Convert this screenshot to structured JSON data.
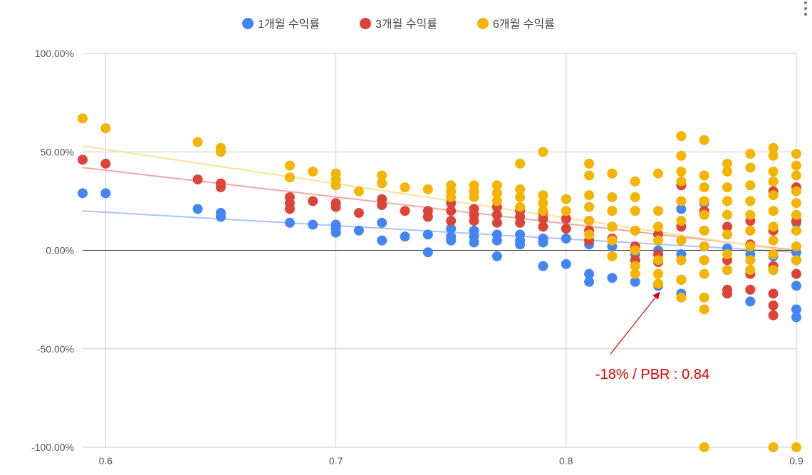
{
  "chart_data": {
    "type": "scatter",
    "title": "",
    "xlabel": "",
    "ylabel": "",
    "xlim": [
      0.59,
      0.9
    ],
    "ylim": [
      -1.0,
      1.0
    ],
    "x_ticks": [
      0.6,
      0.7,
      0.8,
      0.9
    ],
    "x_tick_labels": [
      "0.6",
      "0.7",
      "0.8",
      "0.9"
    ],
    "y_ticks": [
      1.0,
      0.5,
      0.0,
      -0.5,
      -1.0
    ],
    "y_tick_labels": [
      "100.00%",
      "50.00%",
      "0.00%",
      "-50.00%",
      "-100.00%"
    ],
    "grid": true,
    "legend_position": "top-center",
    "series": [
      {
        "name": "1개월 수익률",
        "color": "#4285f4",
        "trendline_color": "#a9c4f5",
        "trendline": [
          [
            0.59,
            0.2
          ],
          [
            0.9,
            -0.01
          ]
        ],
        "points": [
          [
            0.59,
            0.29
          ],
          [
            0.6,
            0.29
          ],
          [
            0.64,
            0.21
          ],
          [
            0.65,
            0.19
          ],
          [
            0.65,
            0.17
          ],
          [
            0.68,
            0.14
          ],
          [
            0.69,
            0.13
          ],
          [
            0.7,
            0.13
          ],
          [
            0.7,
            0.11
          ],
          [
            0.7,
            0.09
          ],
          [
            0.71,
            0.1
          ],
          [
            0.72,
            0.14
          ],
          [
            0.72,
            0.05
          ],
          [
            0.73,
            0.07
          ],
          [
            0.74,
            0.08
          ],
          [
            0.74,
            -0.01
          ],
          [
            0.75,
            0.11
          ],
          [
            0.75,
            0.07
          ],
          [
            0.75,
            0.05
          ],
          [
            0.76,
            0.1
          ],
          [
            0.76,
            0.07
          ],
          [
            0.76,
            0.04
          ],
          [
            0.77,
            0.08
          ],
          [
            0.77,
            0.05
          ],
          [
            0.77,
            -0.03
          ],
          [
            0.78,
            0.08
          ],
          [
            0.78,
            0.05
          ],
          [
            0.78,
            0.03
          ],
          [
            0.79,
            0.06
          ],
          [
            0.79,
            0.04
          ],
          [
            0.79,
            -0.08
          ],
          [
            0.8,
            0.06
          ],
          [
            0.8,
            -0.07
          ],
          [
            0.81,
            0.03
          ],
          [
            0.81,
            -0.12
          ],
          [
            0.81,
            -0.16
          ],
          [
            0.82,
            0.02
          ],
          [
            0.82,
            -0.14
          ],
          [
            0.83,
            -0.02
          ],
          [
            0.83,
            -0.16
          ],
          [
            0.84,
            -0.18
          ],
          [
            0.84,
            0.0
          ],
          [
            0.85,
            0.21
          ],
          [
            0.85,
            -0.02
          ],
          [
            0.85,
            -0.22
          ],
          [
            0.86,
            0.24
          ],
          [
            0.86,
            0.02
          ],
          [
            0.87,
            0.01
          ],
          [
            0.88,
            -0.02
          ],
          [
            0.88,
            -0.26
          ],
          [
            0.89,
            -0.03
          ],
          [
            0.89,
            -0.1
          ],
          [
            0.9,
            0.14
          ],
          [
            0.9,
            -0.01
          ],
          [
            0.9,
            -0.18
          ],
          [
            0.9,
            -0.3
          ],
          [
            0.9,
            -0.34
          ]
        ]
      },
      {
        "name": "3개월 수익률",
        "color": "#db4437",
        "trendline_color": "#f0a8a1",
        "trendline": [
          [
            0.59,
            0.42
          ],
          [
            0.9,
            0.0
          ]
        ],
        "points": [
          [
            0.59,
            0.46
          ],
          [
            0.6,
            0.44
          ],
          [
            0.64,
            0.36
          ],
          [
            0.65,
            0.34
          ],
          [
            0.65,
            0.32
          ],
          [
            0.68,
            0.27
          ],
          [
            0.68,
            0.24
          ],
          [
            0.68,
            0.21
          ],
          [
            0.69,
            0.25
          ],
          [
            0.7,
            0.24
          ],
          [
            0.7,
            0.22
          ],
          [
            0.71,
            0.19
          ],
          [
            0.72,
            0.26
          ],
          [
            0.72,
            0.23
          ],
          [
            0.73,
            0.2
          ],
          [
            0.74,
            0.2
          ],
          [
            0.74,
            0.17
          ],
          [
            0.75,
            0.24
          ],
          [
            0.75,
            0.2
          ],
          [
            0.75,
            0.15
          ],
          [
            0.76,
            0.21
          ],
          [
            0.76,
            0.18
          ],
          [
            0.76,
            0.15
          ],
          [
            0.77,
            0.22
          ],
          [
            0.77,
            0.18
          ],
          [
            0.77,
            0.14
          ],
          [
            0.78,
            0.2
          ],
          [
            0.78,
            0.17
          ],
          [
            0.78,
            0.14
          ],
          [
            0.79,
            0.19
          ],
          [
            0.79,
            0.16
          ],
          [
            0.79,
            0.12
          ],
          [
            0.8,
            0.16
          ],
          [
            0.8,
            0.11
          ],
          [
            0.81,
            0.15
          ],
          [
            0.81,
            0.1
          ],
          [
            0.81,
            0.05
          ],
          [
            0.82,
            0.12
          ],
          [
            0.82,
            0.06
          ],
          [
            0.83,
            0.1
          ],
          [
            0.83,
            0.02
          ],
          [
            0.83,
            -0.05
          ],
          [
            0.84,
            0.08
          ],
          [
            0.84,
            -0.02
          ],
          [
            0.84,
            -0.06
          ],
          [
            0.85,
            0.33
          ],
          [
            0.85,
            0.12
          ],
          [
            0.85,
            -0.05
          ],
          [
            0.85,
            -0.15
          ],
          [
            0.86,
            0.2
          ],
          [
            0.86,
            0.1
          ],
          [
            0.86,
            -0.05
          ],
          [
            0.87,
            0.12
          ],
          [
            0.87,
            -0.05
          ],
          [
            0.87,
            -0.2
          ],
          [
            0.87,
            -0.22
          ],
          [
            0.88,
            0.15
          ],
          [
            0.88,
            0.03
          ],
          [
            0.88,
            -0.12
          ],
          [
            0.88,
            -0.2
          ],
          [
            0.89,
            0.3
          ],
          [
            0.89,
            0.1
          ],
          [
            0.89,
            -0.08
          ],
          [
            0.89,
            -0.22
          ],
          [
            0.89,
            -0.28
          ],
          [
            0.89,
            -0.33
          ],
          [
            0.9,
            0.32
          ],
          [
            0.9,
            0.15
          ],
          [
            0.9,
            -0.05
          ],
          [
            0.9,
            -0.12
          ]
        ]
      },
      {
        "name": "6개월 수익률",
        "color": "#f4b400",
        "trendline_color": "#fbe199",
        "trendline": [
          [
            0.59,
            0.53
          ],
          [
            0.9,
            -0.01
          ]
        ],
        "points": [
          [
            0.59,
            0.67
          ],
          [
            0.6,
            0.62
          ],
          [
            0.64,
            0.55
          ],
          [
            0.65,
            0.52
          ],
          [
            0.65,
            0.5
          ],
          [
            0.68,
            0.43
          ],
          [
            0.68,
            0.37
          ],
          [
            0.69,
            0.4
          ],
          [
            0.7,
            0.39
          ],
          [
            0.7,
            0.36
          ],
          [
            0.7,
            0.33
          ],
          [
            0.71,
            0.3
          ],
          [
            0.72,
            0.38
          ],
          [
            0.72,
            0.34
          ],
          [
            0.73,
            0.32
          ],
          [
            0.74,
            0.31
          ],
          [
            0.75,
            0.33
          ],
          [
            0.75,
            0.3
          ],
          [
            0.75,
            0.27
          ],
          [
            0.76,
            0.33
          ],
          [
            0.76,
            0.3
          ],
          [
            0.76,
            0.27
          ],
          [
            0.77,
            0.33
          ],
          [
            0.77,
            0.29
          ],
          [
            0.77,
            0.25
          ],
          [
            0.78,
            0.44
          ],
          [
            0.78,
            0.31
          ],
          [
            0.78,
            0.27
          ],
          [
            0.78,
            0.22
          ],
          [
            0.79,
            0.5
          ],
          [
            0.79,
            0.28
          ],
          [
            0.79,
            0.24
          ],
          [
            0.79,
            0.2
          ],
          [
            0.8,
            0.26
          ],
          [
            0.8,
            0.2
          ],
          [
            0.81,
            0.44
          ],
          [
            0.81,
            0.38
          ],
          [
            0.81,
            0.28
          ],
          [
            0.81,
            0.22
          ],
          [
            0.81,
            0.15
          ],
          [
            0.81,
            0.08
          ],
          [
            0.82,
            0.39
          ],
          [
            0.82,
            0.27
          ],
          [
            0.82,
            0.2
          ],
          [
            0.82,
            0.12
          ],
          [
            0.82,
            0.05
          ],
          [
            0.82,
            -0.03
          ],
          [
            0.83,
            0.35
          ],
          [
            0.83,
            0.27
          ],
          [
            0.83,
            0.2
          ],
          [
            0.83,
            0.1
          ],
          [
            0.83,
            0.0
          ],
          [
            0.83,
            -0.08
          ],
          [
            0.83,
            -0.12
          ],
          [
            0.84,
            0.39
          ],
          [
            0.84,
            0.2
          ],
          [
            0.84,
            0.12
          ],
          [
            0.84,
            0.05
          ],
          [
            0.84,
            -0.05
          ],
          [
            0.84,
            -0.12
          ],
          [
            0.84,
            -0.17
          ],
          [
            0.85,
            0.58
          ],
          [
            0.85,
            0.48
          ],
          [
            0.85,
            0.4
          ],
          [
            0.85,
            0.35
          ],
          [
            0.85,
            0.25
          ],
          [
            0.85,
            0.15
          ],
          [
            0.85,
            0.05
          ],
          [
            0.85,
            -0.05
          ],
          [
            0.85,
            -0.15
          ],
          [
            0.85,
            -0.24
          ],
          [
            0.86,
            0.56
          ],
          [
            0.86,
            0.38
          ],
          [
            0.86,
            0.32
          ],
          [
            0.86,
            0.25
          ],
          [
            0.86,
            0.18
          ],
          [
            0.86,
            0.1
          ],
          [
            0.86,
            0.02
          ],
          [
            0.86,
            -0.05
          ],
          [
            0.86,
            -0.12
          ],
          [
            0.86,
            -0.24
          ],
          [
            0.86,
            -0.3
          ],
          [
            0.86,
            -1.0
          ],
          [
            0.87,
            0.44
          ],
          [
            0.87,
            0.4
          ],
          [
            0.87,
            0.32
          ],
          [
            0.87,
            0.25
          ],
          [
            0.87,
            0.18
          ],
          [
            0.87,
            0.08
          ],
          [
            0.87,
            -0.02
          ],
          [
            0.87,
            -0.1
          ],
          [
            0.88,
            0.49
          ],
          [
            0.88,
            0.42
          ],
          [
            0.88,
            0.33
          ],
          [
            0.88,
            0.25
          ],
          [
            0.88,
            0.18
          ],
          [
            0.88,
            0.1
          ],
          [
            0.88,
            0.02
          ],
          [
            0.88,
            -0.05
          ],
          [
            0.88,
            -0.1
          ],
          [
            0.89,
            0.52
          ],
          [
            0.89,
            0.48
          ],
          [
            0.89,
            0.4
          ],
          [
            0.89,
            0.35
          ],
          [
            0.89,
            0.28
          ],
          [
            0.89,
            0.2
          ],
          [
            0.89,
            0.12
          ],
          [
            0.89,
            0.05
          ],
          [
            0.89,
            -0.02
          ],
          [
            0.89,
            -0.1
          ],
          [
            0.89,
            -1.0
          ],
          [
            0.9,
            0.49
          ],
          [
            0.9,
            0.43
          ],
          [
            0.9,
            0.38
          ],
          [
            0.9,
            0.3
          ],
          [
            0.9,
            0.24
          ],
          [
            0.9,
            0.18
          ],
          [
            0.9,
            0.1
          ],
          [
            0.9,
            0.02
          ],
          [
            0.9,
            -0.05
          ],
          [
            0.9,
            -1.0
          ]
        ]
      }
    ],
    "annotation": {
      "text": "-18% / PBR : 0.84",
      "color": "#e00000",
      "point": [
        0.84,
        -0.18
      ]
    }
  }
}
